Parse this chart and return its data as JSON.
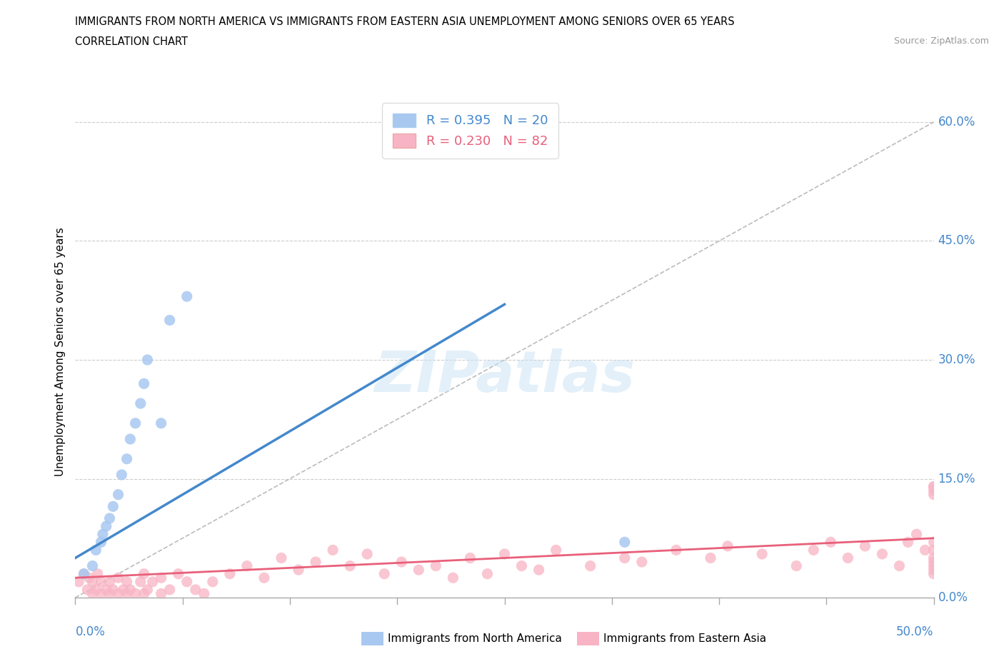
{
  "title_line1": "IMMIGRANTS FROM NORTH AMERICA VS IMMIGRANTS FROM EASTERN ASIA UNEMPLOYMENT AMONG SENIORS OVER 65 YEARS",
  "title_line2": "CORRELATION CHART",
  "source_text": "Source: ZipAtlas.com",
  "ylabel": "Unemployment Among Seniors over 65 years",
  "ytick_values": [
    0.0,
    0.15,
    0.3,
    0.45,
    0.6
  ],
  "ytick_labels": [
    "0.0%",
    "15.0%",
    "30.0%",
    "45.0%",
    "60.0%"
  ],
  "xmin": 0.0,
  "xmax": 0.5,
  "ymin": 0.0,
  "ymax": 0.62,
  "blue_color": "#a8c8f0",
  "pink_color": "#f8b4c4",
  "trend_blue_color": "#4488cc",
  "trend_pink_color": "#e8607a",
  "ref_line_color": "#bbbbbb",
  "legend_label_blue": "R = 0.395   N = 20",
  "legend_label_pink": "R = 0.230   N = 82",
  "legend_text_blue": "#4488cc",
  "legend_text_pink": "#e8607a",
  "blue_scatter_x": [
    0.005,
    0.01,
    0.012,
    0.015,
    0.016,
    0.018,
    0.02,
    0.022,
    0.025,
    0.027,
    0.03,
    0.032,
    0.035,
    0.038,
    0.04,
    0.042,
    0.05,
    0.055,
    0.065,
    0.32
  ],
  "blue_scatter_y": [
    0.03,
    0.04,
    0.06,
    0.07,
    0.08,
    0.09,
    0.1,
    0.115,
    0.13,
    0.155,
    0.175,
    0.2,
    0.22,
    0.245,
    0.27,
    0.3,
    0.22,
    0.35,
    0.38,
    0.07
  ],
  "pink_scatter_x": [
    0.002,
    0.005,
    0.007,
    0.008,
    0.01,
    0.01,
    0.012,
    0.013,
    0.015,
    0.015,
    0.018,
    0.02,
    0.02,
    0.022,
    0.025,
    0.025,
    0.028,
    0.03,
    0.03,
    0.032,
    0.035,
    0.038,
    0.04,
    0.04,
    0.042,
    0.045,
    0.05,
    0.05,
    0.055,
    0.06,
    0.065,
    0.07,
    0.075,
    0.08,
    0.09,
    0.1,
    0.11,
    0.12,
    0.13,
    0.14,
    0.15,
    0.16,
    0.17,
    0.18,
    0.19,
    0.2,
    0.21,
    0.22,
    0.23,
    0.24,
    0.25,
    0.26,
    0.27,
    0.28,
    0.3,
    0.32,
    0.33,
    0.35,
    0.37,
    0.38,
    0.4,
    0.42,
    0.43,
    0.44,
    0.45,
    0.46,
    0.47,
    0.48,
    0.485,
    0.49,
    0.495,
    0.5,
    0.5,
    0.5,
    0.5,
    0.5,
    0.5,
    0.5,
    0.5,
    0.5,
    0.5,
    0.5
  ],
  "pink_scatter_y": [
    0.02,
    0.03,
    0.01,
    0.025,
    0.005,
    0.02,
    0.01,
    0.03,
    0.005,
    0.02,
    0.01,
    0.005,
    0.02,
    0.01,
    0.005,
    0.025,
    0.01,
    0.005,
    0.02,
    0.01,
    0.005,
    0.02,
    0.005,
    0.03,
    0.01,
    0.02,
    0.005,
    0.025,
    0.01,
    0.03,
    0.02,
    0.01,
    0.005,
    0.02,
    0.03,
    0.04,
    0.025,
    0.05,
    0.035,
    0.045,
    0.06,
    0.04,
    0.055,
    0.03,
    0.045,
    0.035,
    0.04,
    0.025,
    0.05,
    0.03,
    0.055,
    0.04,
    0.035,
    0.06,
    0.04,
    0.05,
    0.045,
    0.06,
    0.05,
    0.065,
    0.055,
    0.04,
    0.06,
    0.07,
    0.05,
    0.065,
    0.055,
    0.04,
    0.07,
    0.08,
    0.06,
    0.13,
    0.14,
    0.07,
    0.06,
    0.05,
    0.04,
    0.03,
    0.035,
    0.045,
    0.14,
    0.135
  ],
  "blue_trend_x0": 0.0,
  "blue_trend_y0": 0.05,
  "blue_trend_x1": 0.25,
  "blue_trend_y1": 0.37,
  "pink_trend_x0": 0.0,
  "pink_trend_y0": 0.025,
  "pink_trend_x1": 0.5,
  "pink_trend_y1": 0.075
}
